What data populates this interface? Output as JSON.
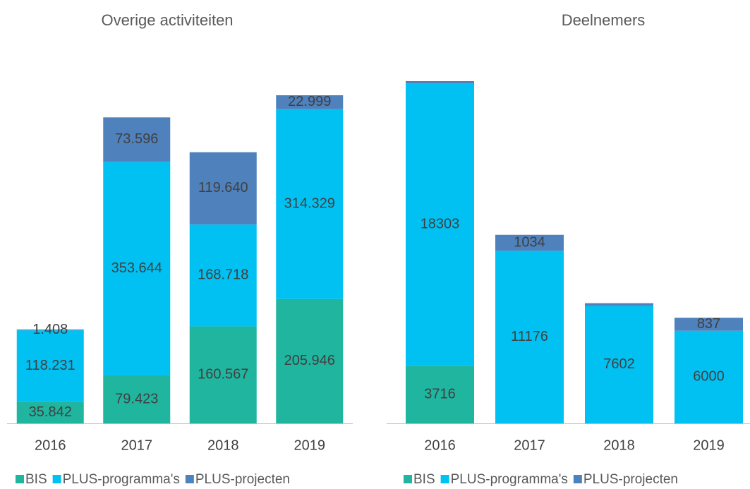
{
  "chart_data": [
    {
      "type": "bar",
      "stacked": true,
      "title": "Overige activiteiten",
      "categories": [
        "2016",
        "2017",
        "2018",
        "2019"
      ],
      "series": [
        {
          "name": "BIS",
          "color": "#20b59f",
          "values": [
            35842,
            79423,
            160567,
            205946
          ],
          "value_labels": [
            "35.842",
            "79.423",
            "160.567",
            "205.946"
          ]
        },
        {
          "name": "PLUS-programma's",
          "color": "#00c1f2",
          "values": [
            118231,
            353644,
            168718,
            314329
          ],
          "value_labels": [
            "118.231",
            "353.644",
            "168.718",
            "314.329"
          ]
        },
        {
          "name": "PLUS-projecten",
          "color": "#4f81bd",
          "values": [
            1408,
            73596,
            119640,
            22999
          ],
          "value_labels": [
            "1.408",
            "73.596",
            "119.640",
            "22.999"
          ]
        }
      ],
      "legend": "bottom"
    },
    {
      "type": "bar",
      "stacked": true,
      "title": "Deelnemers",
      "categories": [
        "2016",
        "2017",
        "2018",
        "2019"
      ],
      "series": [
        {
          "name": "BIS",
          "color": "#20b59f",
          "values": [
            3716,
            null,
            null,
            null
          ],
          "value_labels": [
            "3716",
            null,
            null,
            null
          ]
        },
        {
          "name": "PLUS-programma's",
          "color": "#00c1f2",
          "values": [
            18303,
            11176,
            7602,
            6000
          ],
          "value_labels": [
            "18303",
            "11176",
            "7602",
            "6000"
          ]
        },
        {
          "name": "PLUS-projecten",
          "color": "#4f81bd",
          "values": [
            140,
            1034,
            180,
            837
          ],
          "value_labels": [
            null,
            "1034",
            null,
            "837"
          ]
        }
      ],
      "legend": "bottom"
    }
  ]
}
